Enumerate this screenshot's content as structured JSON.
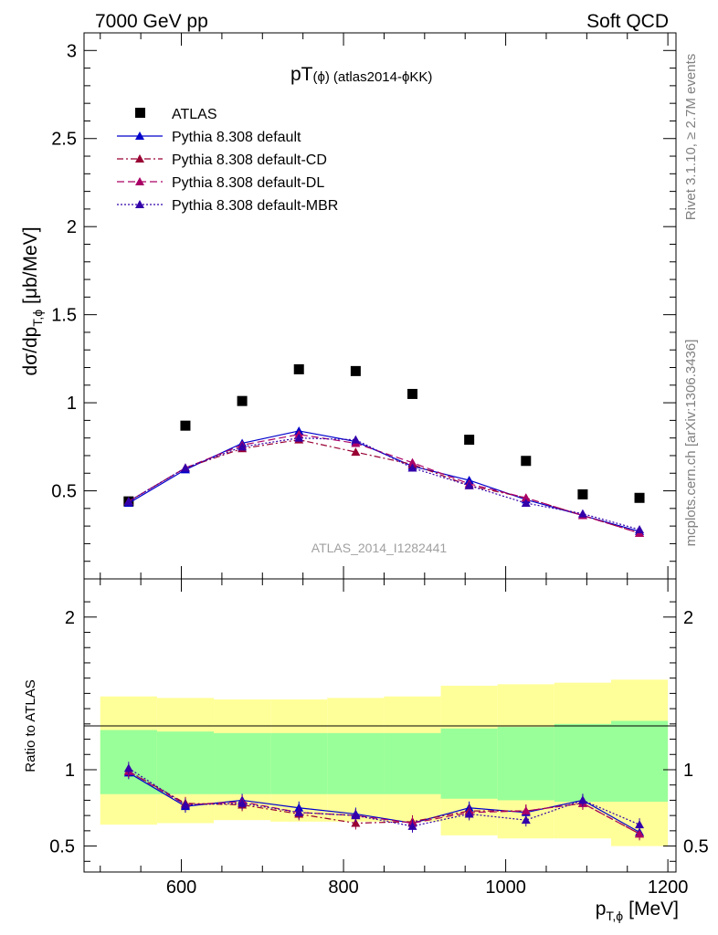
{
  "header": {
    "left": "7000 GeV pp",
    "right": "Soft QCD"
  },
  "side_text": {
    "rivet": "Rivet 3.1.10, ≥ 2.7M events",
    "mcplots": "mcplots.cern.ch [arXiv:1306.3436]"
  },
  "watermark": "ATLAS_2014_I1282441",
  "chart_data": [
    {
      "type": "scatter",
      "title_main": "pT",
      "title_phi": "(ϕ)",
      "title_rest": "(atlas2014-ϕKK)",
      "ylabel_main": "dσ/dp",
      "ylabel_sub": "T,ϕ",
      "ylabel_unit": "[μb/MeV]",
      "xlim": [
        480,
        1210
      ],
      "ylim": [
        0,
        3.1
      ],
      "yticks": [
        {
          "v": 0.5,
          "label": "0.5"
        },
        {
          "v": 1,
          "label": "1"
        },
        {
          "v": 1.5,
          "label": "1.5"
        },
        {
          "v": 2,
          "label": "2"
        },
        {
          "v": 2.5,
          "label": "2.5"
        },
        {
          "v": 3,
          "label": "3"
        }
      ],
      "x": [
        535,
        605,
        675,
        745,
        815,
        885,
        955,
        1025,
        1095,
        1165
      ],
      "series": [
        {
          "name": "ATLAS",
          "color": "#000000",
          "values": [
            0.44,
            0.87,
            1.01,
            1.19,
            1.18,
            1.05,
            0.79,
            0.67,
            0.48,
            0.46
          ]
        },
        {
          "name": "Pythia 8.308 default",
          "color": "#0000cc",
          "values": [
            0.43,
            0.62,
            0.77,
            0.84,
            0.78,
            0.64,
            0.56,
            0.45,
            0.36,
            0.27
          ]
        },
        {
          "name": "Pythia 8.308 default-CD",
          "color": "#990033",
          "values": [
            0.44,
            0.63,
            0.74,
            0.79,
            0.72,
            0.65,
            0.53,
            0.46,
            0.36,
            0.26
          ]
        },
        {
          "name": "Pythia 8.308 default-DL",
          "color": "#aa0066",
          "values": [
            0.44,
            0.63,
            0.76,
            0.82,
            0.77,
            0.66,
            0.54,
            0.46,
            0.36,
            0.26
          ]
        },
        {
          "name": "Pythia 8.308 default-MBR",
          "color": "#3300aa",
          "values": [
            0.44,
            0.63,
            0.75,
            0.8,
            0.79,
            0.63,
            0.53,
            0.43,
            0.37,
            0.28
          ]
        }
      ]
    },
    {
      "type": "line",
      "ylabel": "Ratio to ATLAS",
      "xlabel_main": "p",
      "xlabel_sub": "T,ϕ",
      "xlabel_unit": "[MeV]",
      "xlim": [
        480,
        1210
      ],
      "ylim": [
        0.33,
        2.25
      ],
      "xticks": [
        {
          "v": 600,
          "label": "600"
        },
        {
          "v": 800,
          "label": "800"
        },
        {
          "v": 1000,
          "label": "1000"
        },
        {
          "v": 1200,
          "label": "1200"
        }
      ],
      "yticks": [
        {
          "v": 0.5,
          "label": "0.5"
        },
        {
          "v": 1,
          "label": "1"
        },
        {
          "v": 2,
          "label": "2"
        }
      ],
      "bands": {
        "edges": [
          500,
          570,
          640,
          710,
          780,
          850,
          920,
          990,
          1060,
          1130,
          1200
        ],
        "stat_lo": [
          0.84,
          0.84,
          0.84,
          0.84,
          0.84,
          0.84,
          0.81,
          0.8,
          0.79,
          0.79
        ],
        "stat_hi": [
          1.26,
          1.25,
          1.24,
          1.24,
          1.24,
          1.24,
          1.27,
          1.28,
          1.3,
          1.32
        ],
        "tot_lo": [
          0.64,
          0.65,
          0.67,
          0.66,
          0.66,
          0.66,
          0.57,
          0.55,
          0.55,
          0.5
        ],
        "tot_hi": [
          1.48,
          1.47,
          1.46,
          1.46,
          1.47,
          1.48,
          1.55,
          1.56,
          1.57,
          1.59
        ]
      },
      "x": [
        535,
        605,
        675,
        745,
        815,
        885,
        955,
        1025,
        1095,
        1165
      ],
      "series": [
        {
          "name": "Pythia 8.308 default",
          "color": "#0000cc",
          "values": [
            0.98,
            0.76,
            0.8,
            0.75,
            0.71,
            0.65,
            0.75,
            0.72,
            0.8,
            0.59
          ]
        },
        {
          "name": "Pythia 8.308 default-CD",
          "color": "#990033",
          "values": [
            0.99,
            0.78,
            0.77,
            0.71,
            0.65,
            0.66,
            0.73,
            0.73,
            0.78,
            0.58
          ]
        },
        {
          "name": "Pythia 8.308 default-DL",
          "color": "#aa0066",
          "values": [
            0.99,
            0.77,
            0.79,
            0.72,
            0.7,
            0.65,
            0.72,
            0.73,
            0.78,
            0.58
          ]
        },
        {
          "name": "Pythia 8.308 default-MBR",
          "color": "#3300aa",
          "values": [
            1.01,
            0.77,
            0.78,
            0.72,
            0.7,
            0.63,
            0.71,
            0.67,
            0.8,
            0.64
          ]
        }
      ]
    }
  ]
}
